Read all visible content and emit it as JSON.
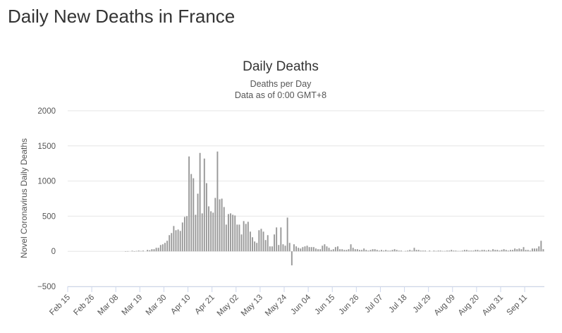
{
  "page": {
    "heading": "Daily New Deaths in France"
  },
  "chart_data": {
    "type": "bar",
    "title": "Daily Deaths",
    "subtitle_lines": [
      "Deaths per Day",
      "Data as of 0:00 GMT+8"
    ],
    "ylabel": "Novel Coronavirus Daily Deaths",
    "xlabel": "",
    "ylim": [
      -500,
      2000
    ],
    "yticks": [
      2000,
      1500,
      1000,
      500,
      0,
      -500
    ],
    "ytick_labels": [
      "2000",
      "1500",
      "1000",
      "500",
      "0",
      "−500"
    ],
    "grid": true,
    "legend": "none",
    "bar_color": "#999999",
    "x_start": "Feb 15",
    "xtick_labels": [
      "Feb 15",
      "Feb 26",
      "Mar 08",
      "Mar 19",
      "Mar 30",
      "Apr 10",
      "Apr 21",
      "May 02",
      "May 13",
      "May 24",
      "Jun 04",
      "Jun 15",
      "Jun 26",
      "Jul 07",
      "Jul 18",
      "Jul 29",
      "Aug 09",
      "Aug 20",
      "Aug 31",
      "Sep 11"
    ],
    "values": [
      0,
      0,
      0,
      0,
      0,
      0,
      0,
      0,
      0,
      0,
      0,
      0,
      0,
      0,
      0,
      0,
      0,
      0,
      0,
      0,
      0,
      0,
      0,
      0,
      0,
      0,
      2,
      3,
      0,
      8,
      2,
      5,
      10,
      5,
      10,
      0,
      20,
      15,
      30,
      30,
      50,
      50,
      90,
      100,
      120,
      150,
      230,
      260,
      360,
      300,
      310,
      290,
      410,
      490,
      500,
      1350,
      1100,
      1040,
      520,
      820,
      1400,
      540,
      1320,
      970,
      640,
      570,
      550,
      760,
      1420,
      740,
      750,
      630,
      380,
      530,
      540,
      520,
      510,
      380,
      380,
      240,
      430,
      390,
      420,
      280,
      200,
      140,
      120,
      300,
      320,
      280,
      160,
      230,
      70,
      70,
      240,
      340,
      90,
      340,
      100,
      80,
      480,
      120,
      -200,
      100,
      70,
      50,
      40,
      60,
      70,
      80,
      60,
      60,
      60,
      40,
      30,
      30,
      80,
      100,
      70,
      50,
      20,
      30,
      60,
      70,
      30,
      30,
      20,
      20,
      30,
      100,
      50,
      30,
      30,
      20,
      20,
      40,
      20,
      10,
      20,
      30,
      30,
      20,
      10,
      20,
      10,
      20,
      10,
      10,
      20,
      30,
      20,
      10,
      10,
      0,
      5,
      10,
      20,
      10,
      50,
      20,
      20,
      10,
      10,
      10,
      0,
      10,
      0,
      10,
      5,
      10,
      10,
      5,
      5,
      10,
      10,
      20,
      10,
      10,
      5,
      5,
      10,
      20,
      20,
      10,
      10,
      10,
      20,
      20,
      10,
      20,
      20,
      10,
      20,
      10,
      30,
      20,
      20,
      10,
      20,
      30,
      20,
      10,
      20,
      20,
      40,
      30,
      40,
      30,
      60,
      20,
      20,
      10,
      40,
      40,
      40,
      70,
      150,
      30
    ]
  }
}
